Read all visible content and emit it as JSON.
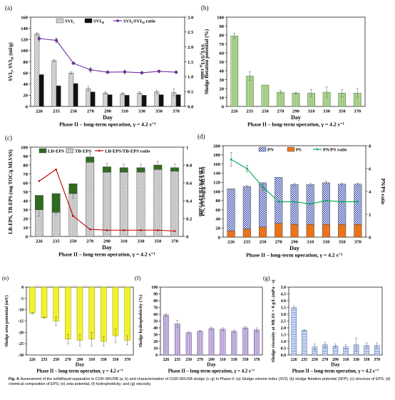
{
  "chart_data": [
    {
      "id": "a",
      "panel_label": "(a)",
      "type": "bar",
      "style": "grouped-bar-line",
      "categories": [
        "226",
        "235",
        "250",
        "270",
        "290",
        "310",
        "330",
        "350",
        "370"
      ],
      "xlabel": "Day",
      "xlabel2": "Phase II – long-term operation, γ = 4.2 s⁻¹",
      "ylabel": "SVI₅, SVI₃₀ (ml/g)",
      "ylim": [
        0,
        160
      ],
      "yticks": [
        0,
        20,
        40,
        60,
        80,
        100,
        120,
        140,
        160
      ],
      "ylabel_right": "SVI₅/SVI₃₀ ratio",
      "ylim_right": [
        0,
        3.0
      ],
      "yticks_right": [
        "0.0",
        "0.5",
        "1.0",
        "1.5",
        "2.0",
        "2.5",
        "3.0"
      ],
      "legend_position": "top",
      "series": [
        {
          "name": "SVI₅",
          "kind": "bar",
          "pattern": "hatch-light",
          "values": [
            130,
            82,
            60,
            32,
            24,
            23,
            24,
            26,
            25
          ],
          "err": [
            2,
            2,
            2,
            4,
            2,
            2,
            2,
            3,
            6
          ]
        },
        {
          "name": "SVI₃₀",
          "kind": "bar",
          "pattern": "black",
          "values": [
            57,
            37,
            41,
            26,
            21,
            20,
            20,
            21,
            21
          ],
          "err": [
            0,
            0,
            0,
            0,
            0,
            0,
            0,
            0,
            0
          ]
        },
        {
          "name": "SVI₅/SVI₃₀ ratio",
          "kind": "line",
          "axis": "right",
          "color": "#7030a0",
          "values": [
            2.28,
            2.22,
            1.45,
            1.23,
            1.15,
            1.16,
            1.13,
            1.18,
            1.15
          ],
          "err": [
            0.08,
            0.08,
            0,
            0.08,
            0.04,
            0.06,
            0.04,
            0.04,
            0.04
          ]
        }
      ]
    },
    {
      "id": "b",
      "panel_label": "(b)",
      "type": "bar",
      "categories": [
        "226",
        "235",
        "250",
        "270",
        "290",
        "310",
        "330",
        "350",
        "370"
      ],
      "xlabel": "Day",
      "xlabel2": "Phase II – long-term operation, γ = 4.2 s⁻¹",
      "ylabel": "Sludge flotation potential (%)",
      "ylim": [
        0,
        100
      ],
      "yticks": [
        0,
        10,
        20,
        30,
        40,
        50,
        60,
        70,
        80,
        90,
        100
      ],
      "series": [
        {
          "name": "SFP",
          "kind": "bar",
          "pattern": "green-stripe",
          "values": [
            79,
            34,
            24,
            16,
            15,
            15,
            16,
            15,
            15
          ],
          "err": [
            3,
            5,
            0,
            2,
            1,
            4,
            6,
            4,
            5
          ]
        }
      ]
    },
    {
      "id": "c",
      "panel_label": "(c)",
      "type": "bar",
      "style": "stacked-bar-line",
      "categories": [
        "226",
        "235",
        "250",
        "270",
        "290",
        "310",
        "330",
        "350",
        "370"
      ],
      "xlabel": "Day",
      "xlabel2": "Phase II – long-term operation, γ = 4.2 s⁻¹",
      "ylabel": "LB-EPS, TB-EPS (mg TOC/g MLVSS)",
      "ylim": [
        0,
        100
      ],
      "yticks": [
        0,
        10,
        20,
        30,
        40,
        50,
        60,
        70,
        80,
        90,
        100
      ],
      "ylabel_right": "LB-EPS/TB-EPS ratio",
      "ylim_right": [
        0,
        1.0
      ],
      "yticks_right": [
        "0",
        "0.2",
        "0.4",
        "0.6",
        "0.8",
        "1"
      ],
      "legend_position": "top",
      "series": [
        {
          "name": "LB-EPS",
          "kind": "bar",
          "pattern": "darkgreen",
          "values": [
            16,
            21,
            11,
            6,
            6,
            5,
            5,
            5,
            4
          ],
          "err": [
            0,
            0,
            0,
            4,
            4,
            4,
            4,
            4,
            4
          ]
        },
        {
          "name": "TB-EPS",
          "kind": "bar",
          "pattern": "hatch-dots",
          "values": [
            30,
            27,
            48,
            83,
            72,
            72,
            72,
            75,
            73
          ],
          "err": [
            7,
            2,
            5,
            0,
            0,
            0,
            0,
            0,
            0
          ]
        },
        {
          "name": "LB-EPS/TB-EPS ratio",
          "kind": "line",
          "axis": "right",
          "color": "#c00000",
          "values": [
            0.62,
            0.75,
            0.23,
            0.08,
            0.07,
            0.07,
            0.07,
            0.07,
            0.06
          ],
          "err": [
            0,
            0,
            0,
            0,
            0,
            0,
            0,
            0,
            0
          ]
        }
      ]
    },
    {
      "id": "d",
      "panel_label": "(d)",
      "type": "bar",
      "style": "stacked-bar-line",
      "categories": [
        "226",
        "235",
        "250",
        "270",
        "290",
        "310",
        "330",
        "350",
        "370"
      ],
      "xlabel": "Day",
      "xlabel2": "Phase II – long-term operation, γ = 4.2 s⁻¹",
      "ylabel": "PN, PS (mg/g MLVSS)",
      "ylim": [
        0,
        200
      ],
      "yticks": [
        0,
        20,
        40,
        60,
        80,
        100,
        120,
        140,
        160,
        180,
        200
      ],
      "ylabel_right": "PN/PS ratio",
      "ylim_right": [
        0,
        8
      ],
      "yticks_right": [
        "0",
        "2",
        "4",
        "6",
        "8"
      ],
      "legend_position": "top",
      "series": [
        {
          "name": "PS",
          "kind": "bar",
          "pattern": "orange",
          "values": [
            14,
            18,
            22,
            30,
            28,
            28,
            28,
            28,
            28
          ],
          "err": [
            0,
            0,
            0,
            0,
            0,
            0,
            0,
            0,
            0
          ]
        },
        {
          "name": "PN",
          "kind": "bar",
          "pattern": "blue-check",
          "values": [
            92,
            93,
            97,
            101,
            87,
            87,
            91,
            88,
            88
          ],
          "err": [
            0,
            2,
            0,
            0,
            3,
            3,
            3,
            2,
            2
          ]
        },
        {
          "name": "PN/PS ratio",
          "kind": "line",
          "axis": "right",
          "color": "#00a651",
          "values": [
            6.8,
            6.0,
            4.4,
            3.1,
            3.1,
            2.9,
            3.2,
            3.1,
            3.1
          ],
          "err": [
            0.6,
            0.3,
            0.3,
            0,
            0,
            0,
            0,
            0,
            0
          ]
        }
      ]
    },
    {
      "id": "e",
      "panel_label": "(e)",
      "type": "bar",
      "negative": true,
      "categories": [
        "226",
        "235",
        "250",
        "270",
        "290",
        "310",
        "330",
        "350",
        "370"
      ],
      "xlabel": "Day",
      "xlabel2": "Phase II – long-term operation, γ = 4.2 s⁻¹",
      "ylabel": "Sludge zeta potential (mV)",
      "ylim": [
        -30,
        0
      ],
      "yticks": [
        0,
        -5,
        -10,
        -15,
        -20,
        -25,
        -30
      ],
      "series": [
        {
          "name": "zeta",
          "kind": "bar",
          "pattern": "yellow",
          "values": [
            -11.5,
            -13.5,
            -15,
            -23,
            -23.5,
            -23,
            -24,
            -21.5,
            -23.5
          ],
          "err": [
            0.3,
            0.3,
            2,
            2,
            2.5,
            3,
            2,
            3,
            2
          ]
        }
      ]
    },
    {
      "id": "f",
      "panel_label": "(f)",
      "type": "bar",
      "categories": [
        "226",
        "235",
        "250",
        "270",
        "290",
        "310",
        "330",
        "350",
        "370"
      ],
      "xlabel": "Day",
      "xlabel2": "Phase II – long-term operation, γ = 4.2 s⁻¹",
      "ylabel": "Sludge hydrophobicity (%)",
      "ylim": [
        0,
        100
      ],
      "yticks": [
        0,
        10,
        20,
        30,
        40,
        50,
        60,
        70,
        80,
        90,
        100
      ],
      "series": [
        {
          "name": "hydrophobicity",
          "kind": "bar",
          "pattern": "purple-stripe",
          "values": [
            59,
            46,
            33,
            35,
            39,
            38,
            35,
            40,
            37
          ],
          "err": [
            2,
            5,
            1,
            1,
            2,
            2,
            2,
            2,
            3
          ]
        }
      ]
    },
    {
      "id": "g",
      "panel_label": "(g)",
      "type": "bar",
      "categories": [
        "226",
        "235",
        "250",
        "270",
        "290",
        "310",
        "330",
        "350",
        "370"
      ],
      "xlabel": "Day",
      "xlabel2": "Phase II – long-term operation, γ = 4.2 s⁻¹",
      "ylabel": "Sludge viscosity at MLSS = 8 g/L (mPa · s)",
      "ylim": [
        0,
        5.0
      ],
      "yticks": [
        "0.0",
        "0.5",
        "1.0",
        "1.5",
        "2.0",
        "2.5",
        "3.0",
        "3.5",
        "4.0",
        "4.5",
        "5.0"
      ],
      "series": [
        {
          "name": "viscosity",
          "kind": "bar",
          "pattern": "blue-stripe",
          "values": [
            3.5,
            1.8,
            0.6,
            0.75,
            0.65,
            0.6,
            0.75,
            0.7,
            0.7
          ],
          "err": [
            0.1,
            0.05,
            0.2,
            0.2,
            0.15,
            0.15,
            0.5,
            0.2,
            0.2
          ]
        }
      ]
    }
  ],
  "caption": {
    "label": "Fig. 4.",
    "text": "Assessment of the solid/liquid separation in CGR-SRUSB (a, b) and characterization of CGR-SRUSB sludge (c–g) in Phase II: (a) Sludge volume index (SVI); (b) sludge flotation potential (SFP); (c) structure of EPS; (d) chemical composition of EPS; (e) zeta potential; (f) hydrophobicity; and (g) viscosity."
  }
}
